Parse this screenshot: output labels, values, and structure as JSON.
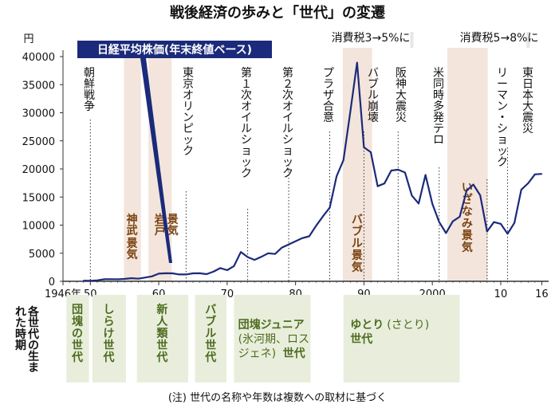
{
  "chart_data": {
    "type": "line",
    "title": "戦後経済の歩みと「世代」の変遷",
    "series_label": "日経平均株価(年末終値ベース)",
    "ylabel": "円",
    "ylim": [
      0,
      40000
    ],
    "y_ticks": [
      0,
      5000,
      10000,
      15000,
      20000,
      25000,
      30000,
      35000,
      40000
    ],
    "xlim": [
      1946,
      2017
    ],
    "x_ticks": [
      {
        "year": 1946,
        "label": "1946年"
      },
      {
        "year": 1950,
        "label": "50"
      },
      {
        "year": 1960,
        "label": "60"
      },
      {
        "year": 1970,
        "label": "70"
      },
      {
        "year": 1980,
        "label": "80"
      },
      {
        "year": 1990,
        "label": "90"
      },
      {
        "year": 2000,
        "label": "2000"
      },
      {
        "year": 2010,
        "label": "10"
      },
      {
        "year": 2016,
        "label": "16"
      }
    ],
    "points": [
      [
        1949,
        109
      ],
      [
        1950,
        101
      ],
      [
        1951,
        166
      ],
      [
        1952,
        362
      ],
      [
        1953,
        377
      ],
      [
        1954,
        356
      ],
      [
        1955,
        425
      ],
      [
        1956,
        549
      ],
      [
        1957,
        474
      ],
      [
        1958,
        666
      ],
      [
        1959,
        874
      ],
      [
        1960,
        1356
      ],
      [
        1961,
        1432
      ],
      [
        1962,
        1420
      ],
      [
        1963,
        1225
      ],
      [
        1964,
        1216
      ],
      [
        1965,
        1417
      ],
      [
        1966,
        1430
      ],
      [
        1967,
        1283
      ],
      [
        1968,
        1714
      ],
      [
        1969,
        2358
      ],
      [
        1970,
        1987
      ],
      [
        1971,
        2713
      ],
      [
        1972,
        5207
      ],
      [
        1973,
        4306
      ],
      [
        1974,
        3817
      ],
      [
        1975,
        4358
      ],
      [
        1976,
        4990
      ],
      [
        1977,
        4865
      ],
      [
        1978,
        6001
      ],
      [
        1979,
        6569
      ],
      [
        1980,
        7116
      ],
      [
        1981,
        7681
      ],
      [
        1982,
        8016
      ],
      [
        1983,
        9893
      ],
      [
        1984,
        11542
      ],
      [
        1985,
        13113
      ],
      [
        1986,
        18701
      ],
      [
        1987,
        21564
      ],
      [
        1988,
        30159
      ],
      [
        1989,
        38915
      ],
      [
        1990,
        23848
      ],
      [
        1991,
        22983
      ],
      [
        1992,
        16924
      ],
      [
        1993,
        17417
      ],
      [
        1994,
        19723
      ],
      [
        1995,
        19868
      ],
      [
        1996,
        19361
      ],
      [
        1997,
        15258
      ],
      [
        1998,
        13842
      ],
      [
        1999,
        18934
      ],
      [
        2000,
        13785
      ],
      [
        2001,
        10542
      ],
      [
        2002,
        8578
      ],
      [
        2003,
        10676
      ],
      [
        2004,
        11488
      ],
      [
        2005,
        16111
      ],
      [
        2006,
        17225
      ],
      [
        2007,
        15307
      ],
      [
        2008,
        8859
      ],
      [
        2009,
        10546
      ],
      [
        2010,
        10228
      ],
      [
        2011,
        8455
      ],
      [
        2012,
        10395
      ],
      [
        2013,
        16291
      ],
      [
        2014,
        17450
      ],
      [
        2015,
        19033
      ],
      [
        2016,
        19114
      ]
    ],
    "booms": [
      {
        "label": "神武景気",
        "start": 1954.9,
        "end": 1957.4
      },
      {
        "label": "岩戸景気",
        "start": 1958.5,
        "end": 1961.9
      },
      {
        "label": "バブル景気",
        "start": 1986.9,
        "end": 1991.2
      },
      {
        "label": "いざなみ景気",
        "start": 2002.2,
        "end": 2008.1
      }
    ],
    "events": [
      {
        "label": "朝鮮戦争",
        "year": 1950
      },
      {
        "label": "東京オリンピック",
        "year": 1964
      },
      {
        "label": "第１次オイルショック",
        "year": 1973
      },
      {
        "label": "第２次オイルショック",
        "year": 1979
      },
      {
        "label": "プラザ合意",
        "year": 1985
      },
      {
        "label": "バブル崩壊",
        "year": 1990
      },
      {
        "label": "阪神大震災",
        "year": 1995
      },
      {
        "label": "米同時多発テロ",
        "year": 2001
      },
      {
        "label": "リーマン・ショック",
        "year": 2008
      },
      {
        "label": "東日本大震災",
        "year": 2011
      }
    ],
    "tax_events": [
      {
        "label": "消費税3→5%に",
        "year": 1997
      },
      {
        "label": "消費税5→8%に",
        "year": 2014
      }
    ],
    "generations_title": "各世代の生まれた時期",
    "generations": [
      {
        "start": 1946.5,
        "end": 1949.8,
        "label": "団塊の世代"
      },
      {
        "start": 1950.3,
        "end": 1955.2,
        "label": "しらけ世代"
      },
      {
        "start": 1956.8,
        "end": 1964.3,
        "label": "新人類世代"
      },
      {
        "start": 1965.3,
        "end": 1969.9,
        "label": "バブル世代"
      },
      {
        "start": 1971.0,
        "end": 1982.2,
        "label": "団塊ジュニア",
        "sub": "(氷河期、ロス",
        "sub2": "ジェネ)",
        "suffix": "世代"
      },
      {
        "start": 1987.0,
        "end": 2004.0,
        "label": "ゆとり",
        "paren": "(さとり)",
        "line2": "世代"
      }
    ],
    "note": "(注) 世代の名称や年数は複数への取材に基づく"
  }
}
